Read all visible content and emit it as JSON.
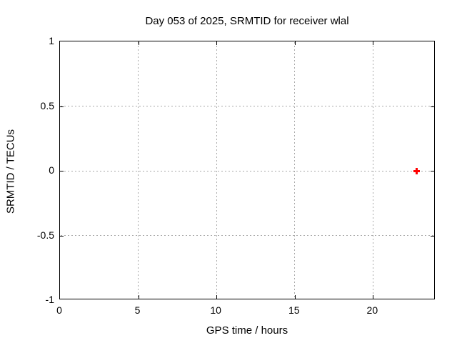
{
  "page": {
    "background": "#ffffff"
  },
  "chart_data": {
    "type": "scatter",
    "title": "Day 053 of 2025, SRMTID for receiver wlal",
    "xlabel": "GPS time / hours",
    "ylabel": "SRMTID / TECUs",
    "xlim": [
      0,
      24
    ],
    "ylim": [
      -1,
      1
    ],
    "x_ticks": [
      0,
      5,
      10,
      15,
      20
    ],
    "x_tick_labels": [
      "0",
      "5",
      "10",
      "15",
      "20"
    ],
    "y_ticks": [
      -1,
      -0.5,
      0,
      0.5,
      1
    ],
    "y_tick_labels": [
      "-1",
      "-0.5",
      "0",
      "0.5",
      "1"
    ],
    "grid": true,
    "grid_style": "dotted",
    "grid_color": "#a8a8a8",
    "axis_color": "#000000",
    "background_color": "#ffffff",
    "legend": "none",
    "series": [
      {
        "name": "SRMTID",
        "marker": "plus",
        "color": "#ff0000",
        "points": [
          {
            "x": 22.8,
            "y": 0.0
          }
        ]
      }
    ]
  }
}
